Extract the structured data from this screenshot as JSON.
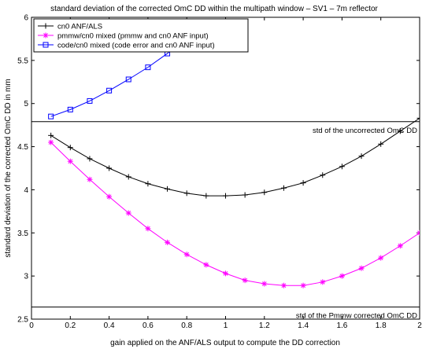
{
  "chart_data": {
    "type": "line",
    "title": "standard deviation of the corrected OmC DD within the multipath window – SV1 – 7m reflector",
    "xlabel": "gain applied on the ANF/ALS output to compute the DD correction",
    "ylabel": "standard deviation of the corrected OmC DD in mm",
    "xlim": [
      0,
      2
    ],
    "ylim": [
      2.5,
      6
    ],
    "xticks": [
      0,
      0.2,
      0.4,
      0.6,
      0.8,
      1,
      1.2,
      1.4,
      1.6,
      1.8,
      2
    ],
    "xtick_labels": [
      "0",
      "0.2",
      "0.4",
      "0.6",
      "0.8",
      "1",
      "1.2",
      "1.4",
      "1.6",
      "1.8",
      "2"
    ],
    "yticks": [
      2.5,
      3,
      3.5,
      4,
      4.5,
      5,
      5.5,
      6
    ],
    "ytick_labels": [
      "2.5",
      "3",
      "3.5",
      "4",
      "4.5",
      "5",
      "5.5",
      "6"
    ],
    "grid": false,
    "legend_position": "top-left",
    "series": [
      {
        "name": "cn0 ANF/ALS",
        "color": "#000000",
        "marker": "plus",
        "x": [
          0.1,
          0.2,
          0.3,
          0.4,
          0.5,
          0.6,
          0.7,
          0.8,
          0.9,
          1.0,
          1.1,
          1.2,
          1.3,
          1.4,
          1.5,
          1.6,
          1.7,
          1.8,
          1.9,
          2.0
        ],
        "y": [
          4.63,
          4.49,
          4.36,
          4.25,
          4.15,
          4.07,
          4.01,
          3.96,
          3.93,
          3.93,
          3.94,
          3.97,
          4.02,
          4.08,
          4.17,
          4.27,
          4.39,
          4.53,
          4.68,
          4.83
        ]
      },
      {
        "name": "pmmw/cn0 mixed  (pmmw and cn0 ANF input)",
        "color": "#ff00ff",
        "marker": "asterisk",
        "x": [
          0.1,
          0.2,
          0.3,
          0.4,
          0.5,
          0.6,
          0.7,
          0.8,
          0.9,
          1.0,
          1.1,
          1.2,
          1.3,
          1.4,
          1.5,
          1.6,
          1.7,
          1.8,
          1.9,
          2.0
        ],
        "y": [
          4.55,
          4.33,
          4.12,
          3.92,
          3.73,
          3.55,
          3.39,
          3.25,
          3.13,
          3.03,
          2.95,
          2.91,
          2.89,
          2.89,
          2.93,
          3.0,
          3.09,
          3.21,
          3.35,
          3.5
        ]
      },
      {
        "name": "code/cn0 mixed  (code error and cn0 ANF input)",
        "color": "#0000ff",
        "marker": "square",
        "x": [
          0.1,
          0.2,
          0.3,
          0.4,
          0.5,
          0.6,
          0.7,
          0.75
        ],
        "y": [
          4.85,
          4.93,
          5.03,
          5.15,
          5.28,
          5.42,
          5.58,
          5.68
        ]
      }
    ],
    "reference_lines": [
      {
        "y": 4.79,
        "label": "std of the uncorrected OmC DD"
      },
      {
        "y": 2.64,
        "label": "std of the Pmmw corrected OmC DD"
      }
    ]
  }
}
